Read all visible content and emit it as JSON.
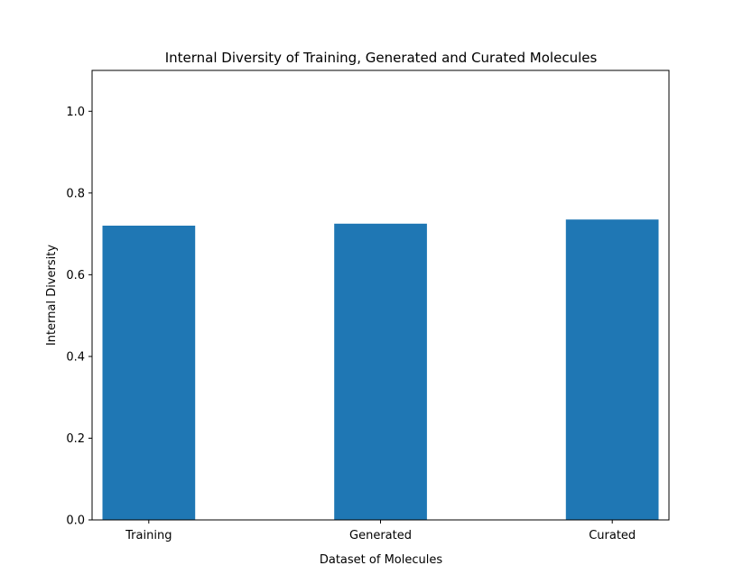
{
  "chart_data": {
    "type": "bar",
    "title": "Internal Diversity of Training, Generated and Curated Molecules",
    "xlabel": "Dataset of Molecules",
    "ylabel": "Internal Diversity",
    "categories": [
      "Training",
      "Generated",
      "Curated"
    ],
    "values": [
      0.72,
      0.725,
      0.735
    ],
    "ylim": [
      0,
      1.1
    ],
    "yticks": [
      "0.0",
      "0.2",
      "0.4",
      "0.6",
      "0.8",
      "1.0"
    ],
    "bar_color": "#1f77b4",
    "grid": false,
    "legend": "none"
  }
}
